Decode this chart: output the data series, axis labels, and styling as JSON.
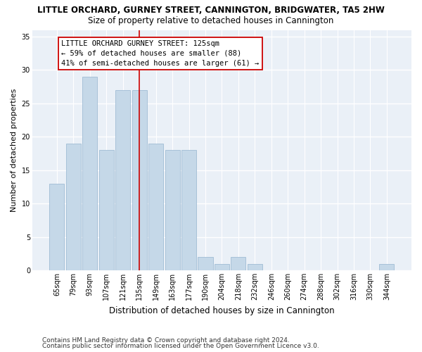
{
  "title": "LITTLE ORCHARD, GURNEY STREET, CANNINGTON, BRIDGWATER, TA5 2HW",
  "subtitle": "Size of property relative to detached houses in Cannington",
  "xlabel": "Distribution of detached houses by size in Cannington",
  "ylabel": "Number of detached properties",
  "categories": [
    "65sqm",
    "79sqm",
    "93sqm",
    "107sqm",
    "121sqm",
    "135sqm",
    "149sqm",
    "163sqm",
    "177sqm",
    "190sqm",
    "204sqm",
    "218sqm",
    "232sqm",
    "246sqm",
    "260sqm",
    "274sqm",
    "288sqm",
    "302sqm",
    "316sqm",
    "330sqm",
    "344sqm"
  ],
  "values": [
    13,
    19,
    29,
    18,
    27,
    27,
    19,
    18,
    18,
    2,
    1,
    2,
    1,
    0,
    0,
    0,
    0,
    0,
    0,
    0,
    1
  ],
  "bar_color": "#c5d8e8",
  "bar_edgecolor": "#a0bcd4",
  "vline_color": "#cc0000",
  "vline_pos": 5.0,
  "annotation_lines": [
    "LITTLE ORCHARD GURNEY STREET: 125sqm",
    "← 59% of detached houses are smaller (88)",
    "41% of semi-detached houses are larger (61) →"
  ],
  "ylim": [
    0,
    36
  ],
  "yticks": [
    0,
    5,
    10,
    15,
    20,
    25,
    30,
    35
  ],
  "bg_color": "#eaf0f7",
  "grid_color": "#ffffff",
  "footnote1": "Contains HM Land Registry data © Crown copyright and database right 2024.",
  "footnote2": "Contains public sector information licensed under the Open Government Licence v3.0.",
  "title_fontsize": 8.5,
  "subtitle_fontsize": 8.5,
  "xlabel_fontsize": 8.5,
  "ylabel_fontsize": 8.0,
  "tick_fontsize": 7.0,
  "ann_fontsize": 7.5,
  "footnote_fontsize": 6.5
}
